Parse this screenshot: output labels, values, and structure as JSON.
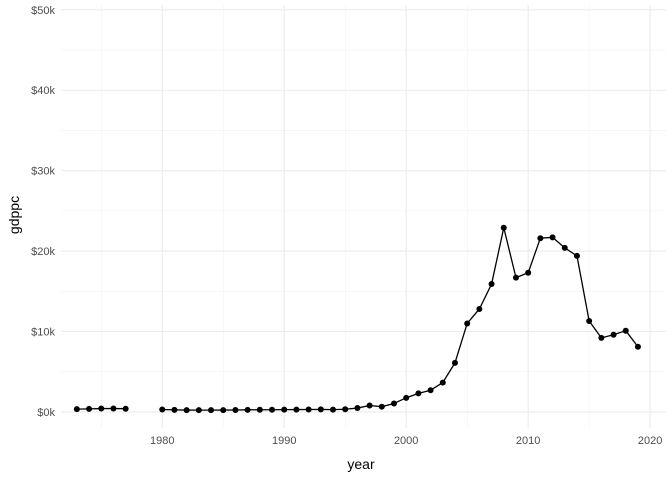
{
  "chart_data": {
    "type": "line",
    "title": "",
    "xlabel": "year",
    "ylabel": "gdppc",
    "xlim": [
      1971.7,
      2021.3
    ],
    "ylim": [
      -2000,
      50600
    ],
    "x_ticks": [
      1980,
      1990,
      2000,
      2010,
      2020
    ],
    "x_tick_labels": [
      "1980",
      "1990",
      "2000",
      "2010",
      "2020"
    ],
    "y_ticks": [
      0,
      10000,
      20000,
      30000,
      40000,
      50000
    ],
    "y_tick_labels": [
      "$0k",
      "$10k",
      "$20k",
      "$30k",
      "$40k",
      "$50k"
    ],
    "grid": true,
    "legend": "none",
    "line_color": "#000000",
    "series": [
      {
        "points": [
          [
            1973,
            350
          ],
          [
            1974,
            380
          ],
          [
            1975,
            420
          ],
          [
            1976,
            420
          ],
          [
            1977,
            400
          ],
          [
            1980,
            300
          ],
          [
            1981,
            250
          ],
          [
            1982,
            230
          ],
          [
            1983,
            220
          ],
          [
            1984,
            220
          ],
          [
            1985,
            230
          ],
          [
            1986,
            240
          ],
          [
            1987,
            260
          ],
          [
            1988,
            270
          ],
          [
            1989,
            270
          ],
          [
            1990,
            280
          ],
          [
            1991,
            290
          ],
          [
            1992,
            300
          ],
          [
            1993,
            310
          ],
          [
            1994,
            280
          ],
          [
            1995,
            330
          ],
          [
            1996,
            480
          ],
          [
            1997,
            800
          ],
          [
            1998,
            650
          ],
          [
            1999,
            1050
          ],
          [
            2000,
            1750
          ],
          [
            2001,
            2300
          ],
          [
            2002,
            2700
          ],
          [
            2003,
            3650
          ],
          [
            2004,
            6100
          ],
          [
            2005,
            11000
          ],
          [
            2006,
            12800
          ],
          [
            2007,
            15900
          ],
          [
            2008,
            22900
          ],
          [
            2009,
            16700
          ],
          [
            2010,
            17300
          ],
          [
            2011,
            21600
          ],
          [
            2012,
            21700
          ],
          [
            2013,
            20400
          ],
          [
            2014,
            19400
          ],
          [
            2015,
            11300
          ],
          [
            2016,
            9200
          ],
          [
            2017,
            9600
          ],
          [
            2018,
            10100
          ],
          [
            2019,
            8100
          ]
        ]
      }
    ]
  }
}
